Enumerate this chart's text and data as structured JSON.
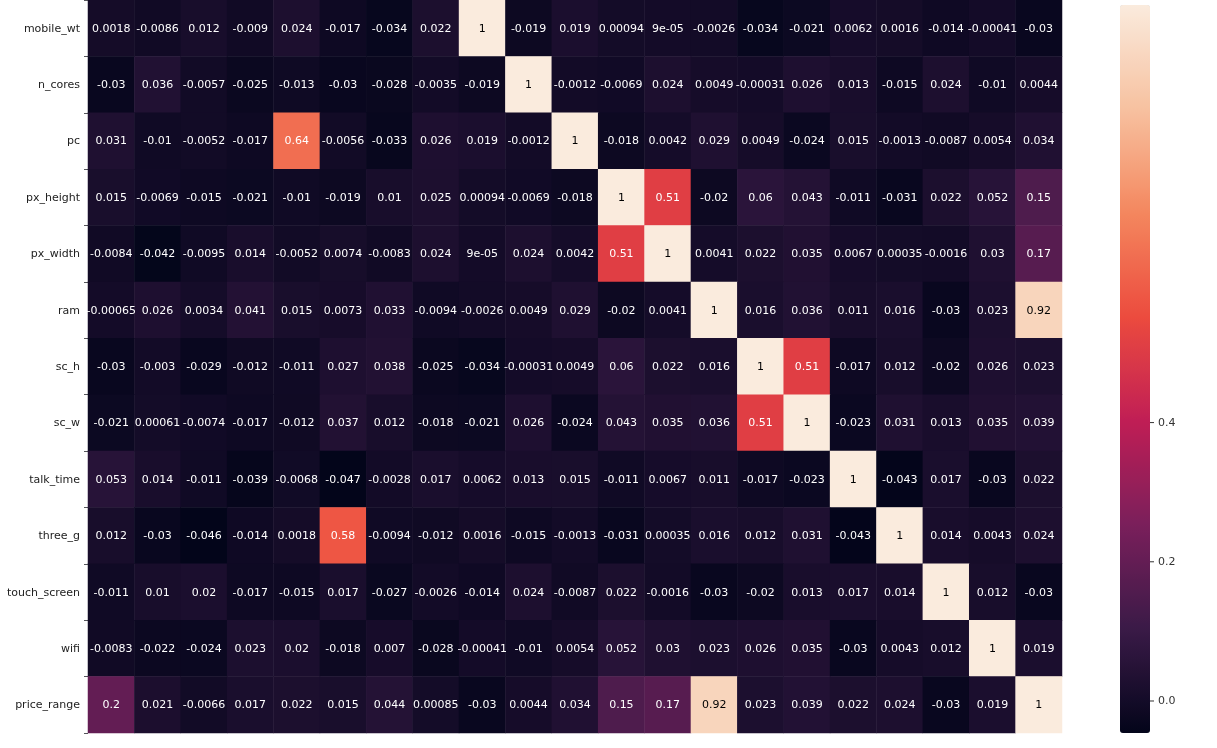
{
  "chart_data": {
    "type": "heatmap",
    "categories": [
      null,
      null,
      null,
      null,
      null,
      null,
      null,
      null,
      null,
      null,
      null,
      null,
      null,
      null,
      null,
      null,
      null,
      null,
      null,
      null,
      null
    ],
    "y_categories": [
      "mobile_wt",
      "n_cores",
      "pc",
      "px_height",
      "px_width",
      "ram",
      "sc_h",
      "sc_w",
      "talk_time",
      "three_g",
      "touch_screen",
      "wifi",
      "price_range"
    ],
    "cells": [
      [
        0.0018,
        -0.0086,
        0.012,
        -0.009,
        0.024,
        -0.017,
        -0.034,
        0.022,
        1,
        -0.019,
        0.019,
        0.00094,
        9e-05,
        -0.0026,
        -0.034,
        -0.021,
        0.0062,
        0.0016,
        -0.014,
        -0.00041,
        -0.03
      ],
      [
        -0.03,
        0.036,
        -0.0057,
        -0.025,
        -0.013,
        -0.03,
        -0.028,
        -0.0035,
        -0.019,
        1,
        -0.0012,
        -0.0069,
        0.024,
        0.0049,
        -0.00031,
        0.026,
        0.013,
        -0.015,
        0.024,
        -0.01,
        0.0044
      ],
      [
        0.031,
        -0.01,
        -0.0052,
        -0.017,
        0.64,
        -0.0056,
        -0.033,
        0.026,
        0.019,
        -0.0012,
        1,
        -0.018,
        0.0042,
        0.029,
        0.0049,
        -0.024,
        0.015,
        -0.0013,
        -0.0087,
        0.0054,
        0.034
      ],
      [
        0.015,
        -0.0069,
        -0.015,
        -0.021,
        -0.01,
        -0.019,
        0.01,
        0.025,
        0.00094,
        -0.0069,
        -0.018,
        1,
        0.51,
        -0.02,
        0.06,
        0.043,
        -0.011,
        -0.031,
        0.022,
        0.052,
        0.15
      ],
      [
        -0.0084,
        -0.042,
        -0.0095,
        0.014,
        -0.0052,
        0.0074,
        -0.0083,
        0.024,
        9e-05,
        0.024,
        0.0042,
        0.51,
        1,
        0.0041,
        0.022,
        0.035,
        0.0067,
        0.00035,
        -0.0016,
        0.03,
        0.17
      ],
      [
        -0.00065,
        0.026,
        0.0034,
        0.041,
        0.015,
        0.0073,
        0.033,
        -0.0094,
        -0.0026,
        0.0049,
        0.029,
        -0.02,
        0.0041,
        1,
        0.016,
        0.036,
        0.011,
        0.016,
        -0.03,
        0.023,
        0.92
      ],
      [
        -0.03,
        -0.003,
        -0.029,
        -0.012,
        -0.011,
        0.027,
        0.038,
        -0.025,
        -0.034,
        -0.00031,
        0.0049,
        0.06,
        0.022,
        0.016,
        1,
        0.51,
        -0.017,
        0.012,
        -0.02,
        0.026,
        0.023
      ],
      [
        -0.021,
        0.00061,
        -0.0074,
        -0.017,
        -0.012,
        0.037,
        0.012,
        -0.018,
        -0.021,
        0.026,
        -0.024,
        0.043,
        0.035,
        0.036,
        0.51,
        1,
        -0.023,
        0.031,
        0.013,
        0.035,
        0.039
      ],
      [
        0.053,
        0.014,
        -0.011,
        -0.039,
        -0.0068,
        -0.047,
        -0.0028,
        0.017,
        0.0062,
        0.013,
        0.015,
        -0.011,
        0.0067,
        0.011,
        -0.017,
        -0.023,
        1,
        -0.043,
        0.017,
        -0.03,
        0.022
      ],
      [
        0.012,
        -0.03,
        -0.046,
        -0.014,
        0.0018,
        0.58,
        -0.0094,
        -0.012,
        0.0016,
        -0.015,
        -0.0013,
        -0.031,
        0.00035,
        0.016,
        0.012,
        0.031,
        -0.043,
        1,
        0.014,
        0.0043,
        0.024
      ],
      [
        -0.011,
        0.01,
        0.02,
        -0.017,
        -0.015,
        0.017,
        -0.027,
        -0.0026,
        -0.014,
        0.024,
        -0.0087,
        0.022,
        -0.0016,
        -0.03,
        -0.02,
        0.013,
        0.017,
        0.014,
        1,
        0.012,
        -0.03
      ],
      [
        -0.0083,
        -0.022,
        -0.024,
        0.023,
        0.02,
        -0.018,
        0.007,
        -0.028,
        -0.00041,
        -0.01,
        0.0054,
        0.052,
        0.03,
        0.023,
        0.026,
        0.035,
        -0.03,
        0.0043,
        0.012,
        1,
        0.019
      ],
      [
        0.2,
        0.021,
        -0.0066,
        0.017,
        0.022,
        0.015,
        0.044,
        0.00085,
        -0.03,
        0.0044,
        0.034,
        0.15,
        0.17,
        0.92,
        0.023,
        0.039,
        0.022,
        0.024,
        -0.03,
        0.019,
        1
      ]
    ],
    "cell_labels": [
      [
        "0.0018",
        "-0.0086",
        "0.012",
        "-0.009",
        "0.024",
        "-0.017",
        "-0.034",
        "0.022",
        "1",
        "-0.019",
        "0.019",
        "0.00094",
        "9e-05",
        "-0.0026",
        "-0.034",
        "-0.021",
        "0.0062",
        "0.0016",
        "-0.014",
        "-0.00041",
        "-0.03"
      ],
      [
        "-0.03",
        "0.036",
        "-0.0057",
        "-0.025",
        "-0.013",
        "-0.03",
        "-0.028",
        "-0.0035",
        "-0.019",
        "1",
        "-0.0012",
        "-0.0069",
        "0.024",
        "0.0049",
        "-0.00031",
        "0.026",
        "0.013",
        "-0.015",
        "0.024",
        "-0.01",
        "0.0044"
      ],
      [
        "0.031",
        "-0.01",
        "-0.0052",
        "-0.017",
        "0.64",
        "-0.0056",
        "-0.033",
        "0.026",
        "0.019",
        "-0.0012",
        "1",
        "-0.018",
        "0.0042",
        "0.029",
        "0.0049",
        "-0.024",
        "0.015",
        "-0.0013",
        "-0.0087",
        "0.0054",
        "0.034"
      ],
      [
        "0.015",
        "-0.0069",
        "-0.015",
        "-0.021",
        "-0.01",
        "-0.019",
        "0.01",
        "0.025",
        "0.00094",
        "-0.0069",
        "-0.018",
        "1",
        "0.51",
        "-0.02",
        "0.06",
        "0.043",
        "-0.011",
        "-0.031",
        "0.022",
        "0.052",
        "0.15"
      ],
      [
        "-0.0084",
        "-0.042",
        "-0.0095",
        "0.014",
        "-0.0052",
        "0.0074",
        "-0.0083",
        "0.024",
        "9e-05",
        "0.024",
        "0.0042",
        "0.51",
        "1",
        "0.0041",
        "0.022",
        "0.035",
        "0.0067",
        "0.00035",
        "-0.0016",
        "0.03",
        "0.17"
      ],
      [
        "-0.00065",
        "0.026",
        "0.0034",
        "0.041",
        "0.015",
        "0.0073",
        "0.033",
        "-0.0094",
        "-0.0026",
        "0.0049",
        "0.029",
        "-0.02",
        "0.0041",
        "1",
        "0.016",
        "0.036",
        "0.011",
        "0.016",
        "-0.03",
        "0.023",
        "0.92"
      ],
      [
        "-0.03",
        "-0.003",
        "-0.029",
        "-0.012",
        "-0.011",
        "0.027",
        "0.038",
        "-0.025",
        "-0.034",
        "-0.00031",
        "0.0049",
        "0.06",
        "0.022",
        "0.016",
        "1",
        "0.51",
        "-0.017",
        "0.012",
        "-0.02",
        "0.026",
        "0.023"
      ],
      [
        "-0.021",
        "0.00061",
        "-0.0074",
        "-0.017",
        "-0.012",
        "0.037",
        "0.012",
        "-0.018",
        "-0.021",
        "0.026",
        "-0.024",
        "0.043",
        "0.035",
        "0.036",
        "0.51",
        "1",
        "-0.023",
        "0.031",
        "0.013",
        "0.035",
        "0.039"
      ],
      [
        "0.053",
        "0.014",
        "-0.011",
        "-0.039",
        "-0.0068",
        "-0.047",
        "-0.0028",
        "0.017",
        "0.0062",
        "0.013",
        "0.015",
        "-0.011",
        "0.0067",
        "0.011",
        "-0.017",
        "-0.023",
        "1",
        "-0.043",
        "0.017",
        "-0.03",
        "0.022"
      ],
      [
        "0.012",
        "-0.03",
        "-0.046",
        "-0.014",
        "0.0018",
        "0.58",
        "-0.0094",
        "-0.012",
        "0.0016",
        "-0.015",
        "-0.0013",
        "-0.031",
        "0.00035",
        "0.016",
        "0.012",
        "0.031",
        "-0.043",
        "1",
        "0.014",
        "0.0043",
        "0.024"
      ],
      [
        "-0.011",
        "0.01",
        "0.02",
        "-0.017",
        "-0.015",
        "0.017",
        "-0.027",
        "-0.0026",
        "-0.014",
        "0.024",
        "-0.0087",
        "0.022",
        "-0.0016",
        "-0.03",
        "-0.02",
        "0.013",
        "0.017",
        "0.014",
        "1",
        "0.012",
        "-0.03"
      ],
      [
        "-0.0083",
        "-0.022",
        "-0.024",
        "0.023",
        "0.02",
        "-0.018",
        "0.007",
        "-0.028",
        "-0.00041",
        "-0.01",
        "0.0054",
        "0.052",
        "0.03",
        "0.023",
        "0.026",
        "0.035",
        "-0.03",
        "0.0043",
        "0.012",
        "1",
        "0.019"
      ],
      [
        "0.2",
        "0.021",
        "-0.0066",
        "0.017",
        "0.022",
        "0.015",
        "0.044",
        "0.00085",
        "-0.03",
        "0.0044",
        "0.034",
        "0.15",
        "0.17",
        "0.92",
        "0.023",
        "0.039",
        "0.022",
        "0.024",
        "-0.03",
        "0.019",
        "1"
      ]
    ],
    "clim": [
      -0.046,
      1
    ],
    "cticks": [
      {
        "value": 0,
        "label": "0.0"
      },
      {
        "value": 0.2,
        "label": "0.2"
      },
      {
        "value": 0.4,
        "label": "0.4"
      }
    ]
  }
}
